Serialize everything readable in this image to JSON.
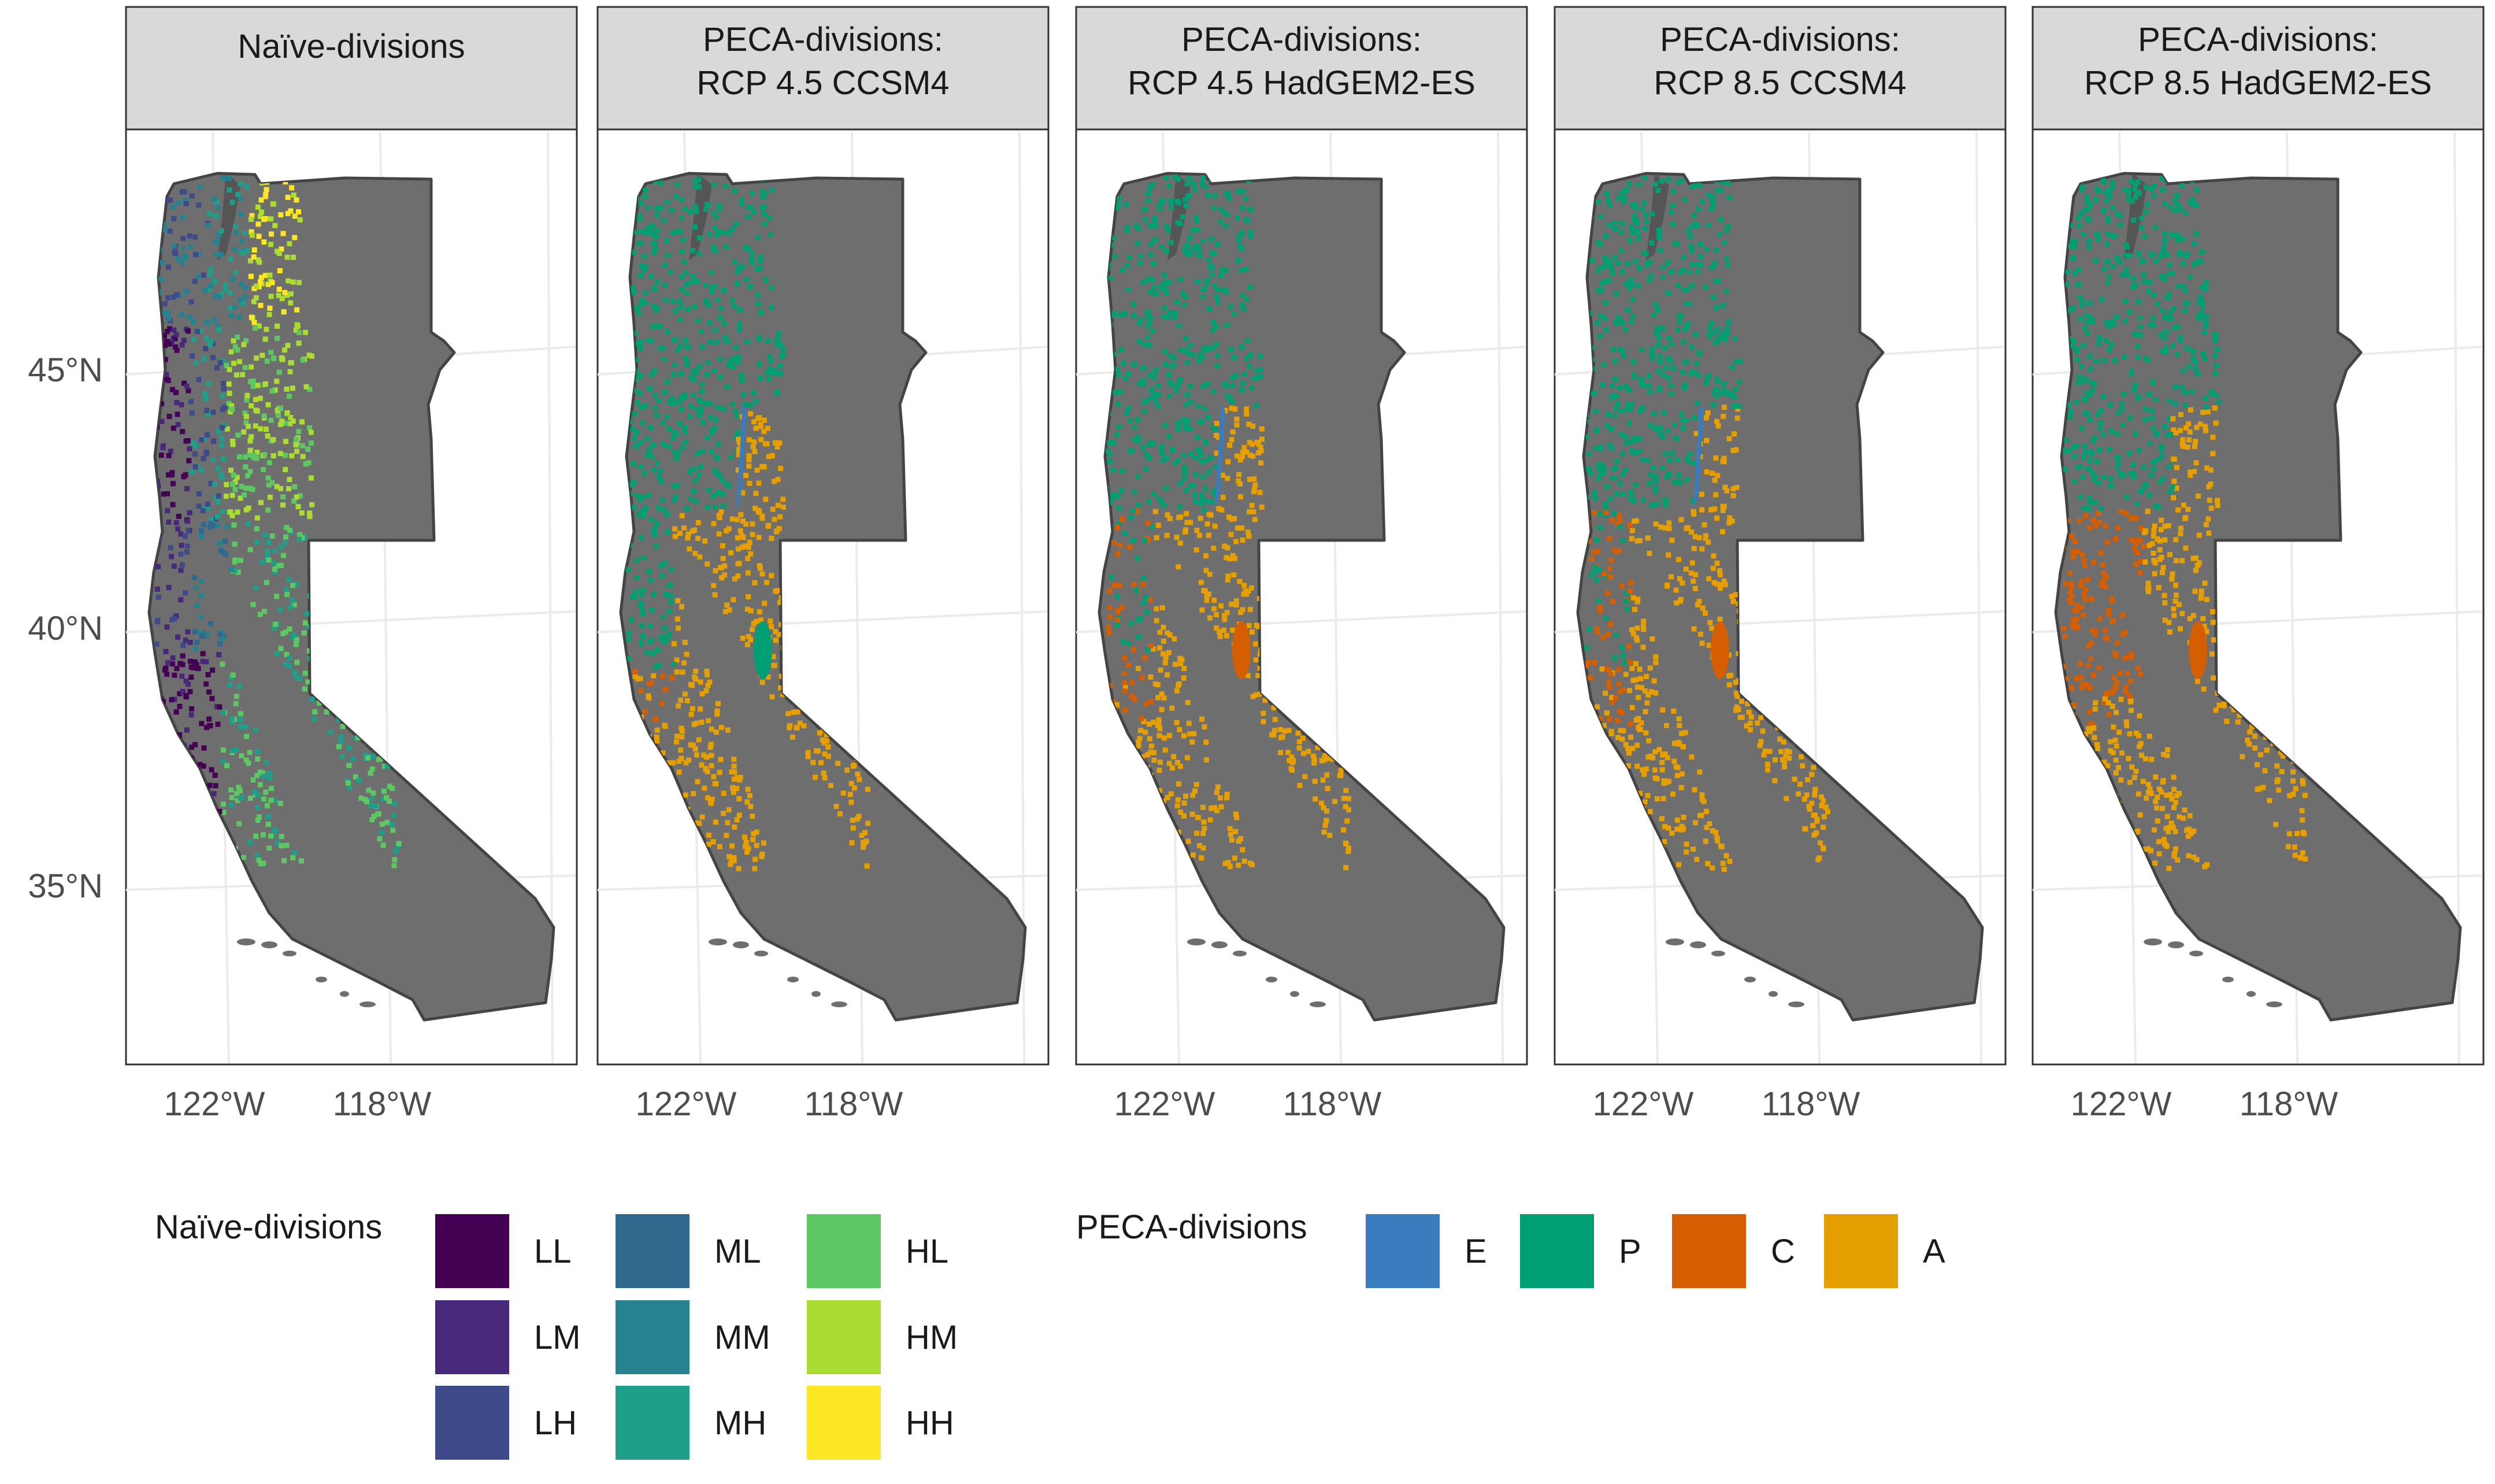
{
  "panels": [
    {
      "id": "naive",
      "strip": [
        "Naïve-divisions"
      ],
      "fill_scheme": "naive"
    },
    {
      "id": "rcp45_ccsm4",
      "strip": [
        "PECA-divisions:",
        "RCP 4.5 CCSM4"
      ],
      "fill_scheme": "peca_a"
    },
    {
      "id": "rcp45_hadgem",
      "strip": [
        "PECA-divisions:",
        "RCP 4.5 HadGEM2-ES"
      ],
      "fill_scheme": "peca_b"
    },
    {
      "id": "rcp85_ccsm4",
      "strip": [
        "PECA-divisions:",
        "RCP 8.5 CCSM4"
      ],
      "fill_scheme": "peca_c"
    },
    {
      "id": "rcp85_hadgem",
      "strip": [
        "PECA-divisions:",
        "RCP 8.5 HadGEM2-ES"
      ],
      "fill_scheme": "peca_d"
    }
  ],
  "axes": {
    "y_ticks": [
      "45°N",
      "40°N",
      "35°N"
    ],
    "x_ticks": [
      "122°W",
      "118°W"
    ]
  },
  "legends": {
    "naive": {
      "title": "Naïve-divisions",
      "columns": [
        [
          {
            "label": "LL",
            "color": "#440154"
          },
          {
            "label": "LM",
            "color": "#482878"
          },
          {
            "label": "LH",
            "color": "#3E4A89"
          }
        ],
        [
          {
            "label": "ML",
            "color": "#31688E"
          },
          {
            "label": "MM",
            "color": "#26828E"
          },
          {
            "label": "MH",
            "color": "#1F9E89"
          }
        ],
        [
          {
            "label": "HL",
            "color": "#5DC863"
          },
          {
            "label": "HM",
            "color": "#AADC32"
          },
          {
            "label": "HH",
            "color": "#FDE725"
          }
        ]
      ]
    },
    "peca": {
      "title": "PECA-divisions",
      "items": [
        {
          "label": "E",
          "color": "#3A7DBF"
        },
        {
          "label": "P",
          "color": "#009E73"
        },
        {
          "label": "C",
          "color": "#D55E00"
        },
        {
          "label": "A",
          "color": "#E69F00"
        }
      ]
    }
  },
  "colors": {
    "land": "#6E6E6E",
    "land_outline": "#444444",
    "strip_fill": "#D9D9D9",
    "panel_border": "#333333",
    "grid": "#EBEBEB"
  }
}
